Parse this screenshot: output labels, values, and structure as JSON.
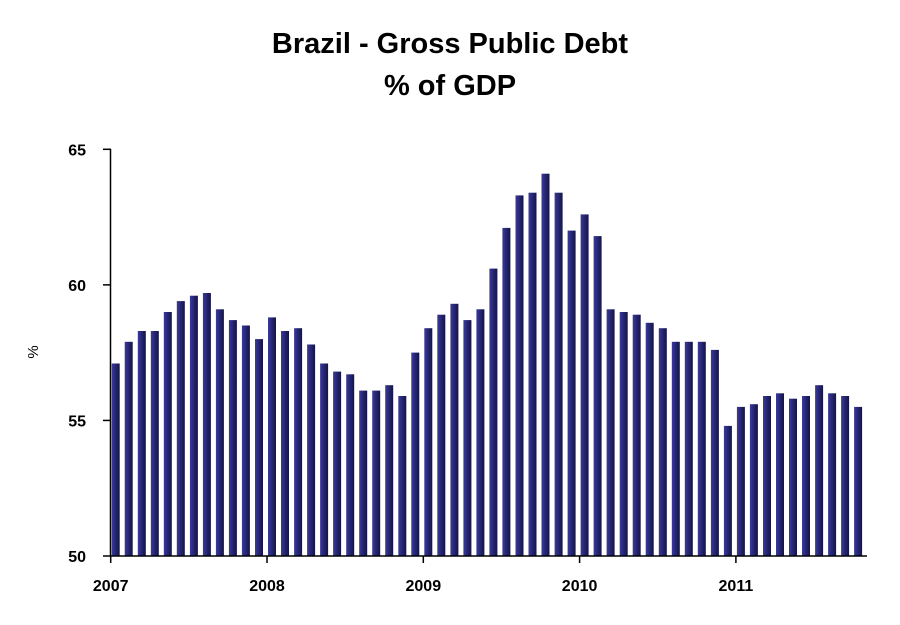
{
  "chart_data": {
    "type": "bar",
    "title": "Brazil - Gross Public Debt",
    "subtitle": "% of GDP",
    "xlabel": "",
    "ylabel": "%",
    "ylim": [
      50,
      65
    ],
    "yticks": [
      "50",
      "55",
      "60",
      "65"
    ],
    "xticks": [
      "2007",
      "2008",
      "2009",
      "2010",
      "2011"
    ],
    "x_start": "2007-01",
    "x_end": "2011-10",
    "frequency": "monthly",
    "grid": false,
    "bar_color": "#2b2b7a",
    "values": [
      57.1,
      57.9,
      58.3,
      58.3,
      59.0,
      59.4,
      59.6,
      59.7,
      59.1,
      58.7,
      58.5,
      58.0,
      58.8,
      58.3,
      58.4,
      57.8,
      57.1,
      56.8,
      56.7,
      56.1,
      56.1,
      56.3,
      55.9,
      57.5,
      58.4,
      58.9,
      59.3,
      58.7,
      59.1,
      60.6,
      62.1,
      63.3,
      63.4,
      64.1,
      63.4,
      62.0,
      62.6,
      61.8,
      59.1,
      59.0,
      58.9,
      58.6,
      58.4,
      57.9,
      57.9,
      57.9,
      57.6,
      54.8,
      55.5,
      55.6,
      55.9,
      56.0,
      55.8,
      55.9,
      56.3,
      56.0,
      55.9,
      55.5
    ]
  }
}
